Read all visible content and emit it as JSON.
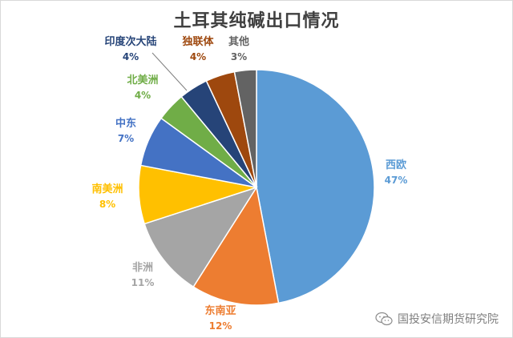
{
  "chart_data": {
    "type": "pie",
    "title": "土耳其纯碱出口情况",
    "slices": [
      {
        "label": "西欧",
        "pct_text": "47%",
        "value": 47,
        "color": "#5B9BD5"
      },
      {
        "label": "东南亚",
        "pct_text": "12%",
        "value": 12,
        "color": "#ED7D31"
      },
      {
        "label": "非洲",
        "pct_text": "11%",
        "value": 11,
        "color": "#A5A5A5"
      },
      {
        "label": "南美洲",
        "pct_text": "8%",
        "value": 8,
        "color": "#FFC000"
      },
      {
        "label": "中东",
        "pct_text": "7%",
        "value": 7,
        "color": "#4472C4"
      },
      {
        "label": "北美洲",
        "pct_text": "4%",
        "value": 4,
        "color": "#70AD47"
      },
      {
        "label": "印度次大陆",
        "pct_text": "4%",
        "value": 4,
        "color": "#264478"
      },
      {
        "label": "独联体",
        "pct_text": "4%",
        "value": 4,
        "color": "#9E480E"
      },
      {
        "label": "其他",
        "pct_text": "3%",
        "value": 3,
        "color": "#636363"
      }
    ]
  },
  "watermark": {
    "text": "国投安信期货研究院",
    "icon": "wechat-icon"
  }
}
